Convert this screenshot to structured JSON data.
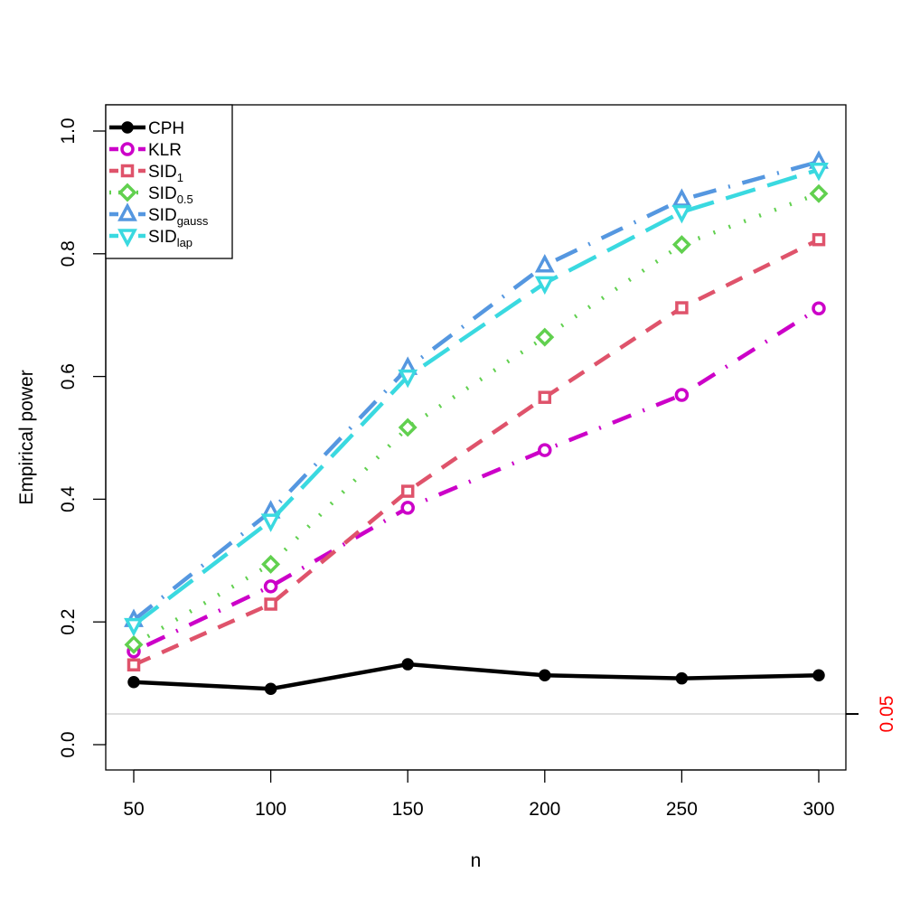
{
  "chart_data": {
    "type": "line",
    "xlabel": "n",
    "ylabel": "Empirical power",
    "x": [
      50,
      100,
      150,
      200,
      250,
      300
    ],
    "xlim": [
      50,
      300
    ],
    "ylim": [
      0,
      1
    ],
    "x_ticks": [
      "50",
      "100",
      "150",
      "200",
      "250",
      "300"
    ],
    "y_ticks": [
      "0.0",
      "0.2",
      "0.4",
      "0.6",
      "0.8",
      "1.0"
    ],
    "legend_position": "top-left",
    "grid": false,
    "reference_line": {
      "value": 0.05,
      "label": "0.05",
      "color": "#ff0000",
      "line_color": "#d3d3d3"
    },
    "series": [
      {
        "name": "CPH",
        "sub": "",
        "color": "#000000",
        "dash": "",
        "marker": "filled-circle",
        "values": [
          0.102,
          0.091,
          0.131,
          0.113,
          0.108,
          0.113
        ]
      },
      {
        "name": "KLR",
        "sub": "",
        "color": "#cc00c8",
        "dash": "dashdot",
        "marker": "open-circle",
        "values": [
          0.152,
          0.258,
          0.386,
          0.48,
          0.57,
          0.711
        ]
      },
      {
        "name": "SID",
        "sub": "1",
        "color": "#df536b",
        "dash": "dashed",
        "marker": "open-square",
        "values": [
          0.13,
          0.229,
          0.413,
          0.566,
          0.712,
          0.823
        ]
      },
      {
        "name": "SID",
        "sub": "0.5",
        "color": "#61d04f",
        "dash": "dotted",
        "marker": "open-diamond",
        "values": [
          0.163,
          0.294,
          0.517,
          0.664,
          0.815,
          0.898
        ]
      },
      {
        "name": "SID",
        "sub": "gauss",
        "color": "#5597e0",
        "dash": "dashdot-long",
        "marker": "open-triangle-up",
        "values": [
          0.203,
          0.38,
          0.614,
          0.781,
          0.888,
          0.95
        ]
      },
      {
        "name": "SID",
        "sub": "lap",
        "color": "#3ad9e0",
        "dash": "longdash",
        "marker": "open-triangle-down",
        "values": [
          0.195,
          0.365,
          0.6,
          0.752,
          0.868,
          0.937
        ]
      }
    ]
  }
}
